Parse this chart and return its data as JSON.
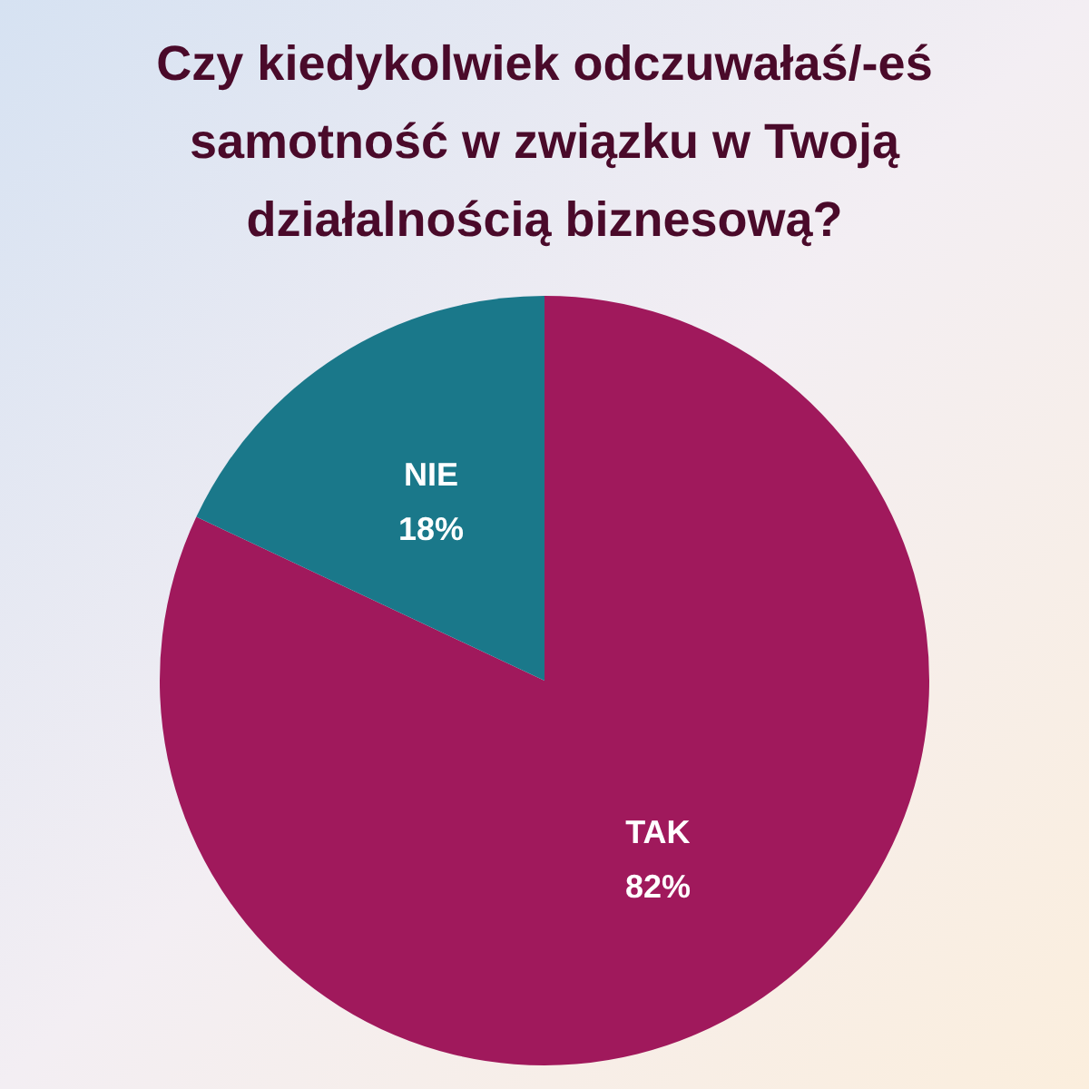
{
  "chart_data": {
    "type": "pie",
    "title": "Czy kiedykolwiek odczuwałaś/-eś samotność w związku w Twoją działalnością biznesową?",
    "categories": [
      "TAK",
      "NIE"
    ],
    "values": [
      82,
      18
    ],
    "colors": [
      "#a0195c",
      "#1a788a"
    ],
    "value_labels": [
      "82%",
      "18%"
    ],
    "legend": false
  }
}
